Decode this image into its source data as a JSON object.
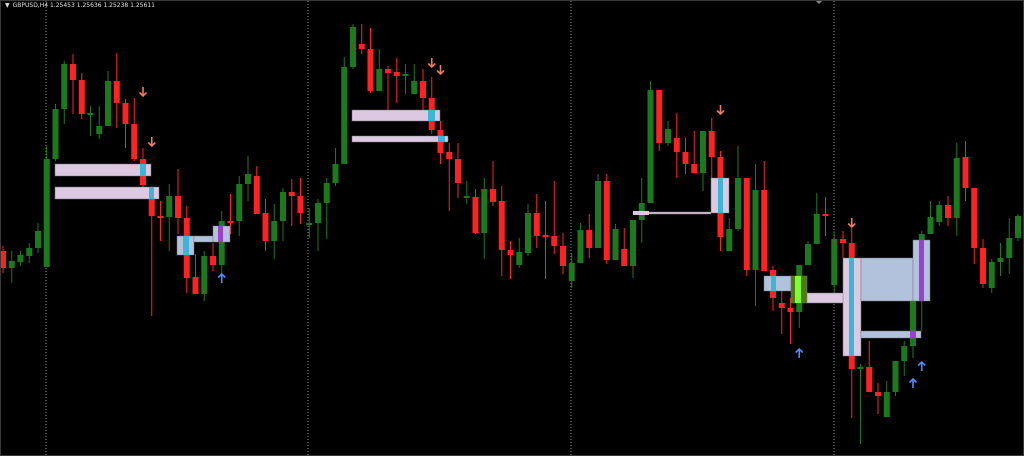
{
  "header": {
    "menu_icon": "triangle-down-icon",
    "symbol": "GBPUSD,H4",
    "ohlc": "1.25453 1.25636 1.25238 1.25611"
  },
  "colors": {
    "background": "#000000",
    "bull": "#1b7a1b",
    "bear": "#ff2222",
    "sell_arrow": "#f27a5e",
    "buy_arrow": "#4a8cff",
    "zone_pink": "#dcc8e0",
    "zone_blue": "#b2c2dc",
    "zone_cyan": "#3bb6d6",
    "zone_purple": "#9b3fd0",
    "zone_lime": "#7aff30",
    "separator": "#9a9a9a"
  },
  "chart_data": {
    "type": "candlestick",
    "title": "GBPUSD,H4",
    "grid": false,
    "ylim": [
      1.2344,
      1.28
    ],
    "period_separators": 4,
    "candles": [
      [
        1.255,
        1.2555,
        1.2528,
        1.2533
      ],
      [
        1.2533,
        1.255,
        1.2518,
        1.254
      ],
      [
        1.2539,
        1.255,
        1.2535,
        1.2546
      ],
      [
        1.2545,
        1.2558,
        1.2538,
        1.2553
      ],
      [
        1.2553,
        1.2578,
        1.2548,
        1.257
      ],
      [
        1.2534,
        1.2655,
        1.2534,
        1.2642
      ],
      [
        1.2642,
        1.2697,
        1.264,
        1.2692
      ],
      [
        1.2692,
        1.274,
        1.2677,
        1.2737
      ],
      [
        1.2737,
        1.2747,
        1.2687,
        1.2721
      ],
      [
        1.2721,
        1.2728,
        1.2682,
        1.2687
      ],
      [
        1.2687,
        1.2695,
        1.2665,
        1.2688
      ],
      [
        1.2667,
        1.2695,
        1.2662,
        1.2675
      ],
      [
        1.2675,
        1.273,
        1.2675,
        1.272
      ],
      [
        1.272,
        1.2748,
        1.2673,
        1.2698
      ],
      [
        1.2698,
        1.2702,
        1.2653,
        1.2677
      ],
      [
        1.2677,
        1.2703,
        1.264,
        1.2642
      ],
      [
        1.2642,
        1.2653,
        1.2614,
        1.2616
      ],
      [
        1.2603,
        1.2613,
        1.2485,
        1.2585
      ],
      [
        1.2585,
        1.26,
        1.256,
        1.2584
      ],
      [
        1.2584,
        1.2617,
        1.255,
        1.2605
      ],
      [
        1.2605,
        1.2632,
        1.2567,
        1.2583
      ],
      [
        1.2583,
        1.2595,
        1.2508,
        1.2523
      ],
      [
        1.2524,
        1.2547,
        1.2507,
        1.2507
      ],
      [
        1.2507,
        1.255,
        1.25,
        1.2545
      ],
      [
        1.2545,
        1.2558,
        1.253,
        1.2536
      ],
      [
        1.2536,
        1.259,
        1.2527,
        1.258
      ],
      [
        1.258,
        1.2607,
        1.2567,
        1.2578
      ],
      [
        1.258,
        1.2625,
        1.2565,
        1.2617
      ],
      [
        1.2617,
        1.2645,
        1.26,
        1.2627
      ],
      [
        1.2625,
        1.2635,
        1.2587,
        1.2587
      ],
      [
        1.2588,
        1.2602,
        1.255,
        1.256
      ],
      [
        1.256,
        1.2597,
        1.2542,
        1.258
      ],
      [
        1.258,
        1.2613,
        1.256,
        1.2609
      ],
      [
        1.2609,
        1.2622,
        1.2575,
        1.2605
      ],
      [
        1.2605,
        1.2623,
        1.2577,
        1.2588
      ],
      [
        1.2576,
        1.2593,
        1.2563,
        1.2578
      ],
      [
        1.2578,
        1.2602,
        1.255,
        1.2598
      ],
      [
        1.2598,
        1.2623,
        1.2562,
        1.2618
      ],
      [
        1.2618,
        1.2653,
        1.2615,
        1.2637
      ],
      [
        1.2637,
        1.2744,
        1.2637,
        1.2734
      ],
      [
        1.2734,
        1.2777,
        1.2732,
        1.2774
      ],
      [
        1.2757,
        1.2777,
        1.2747,
        1.2752
      ],
      [
        1.2752,
        1.2773,
        1.2708,
        1.271
      ],
      [
        1.271,
        1.2752,
        1.271,
        1.2732
      ],
      [
        1.2732,
        1.2735,
        1.269,
        1.2728
      ],
      [
        1.2729,
        1.2743,
        1.2698,
        1.2725
      ],
      [
        1.2726,
        1.2737,
        1.2707,
        1.2727
      ],
      [
        1.2707,
        1.2737,
        1.2707,
        1.272
      ],
      [
        1.272,
        1.2732,
        1.269,
        1.2703
      ],
      [
        1.2703,
        1.2724,
        1.2667,
        1.2671
      ],
      [
        1.2671,
        1.268,
        1.2637,
        1.2648
      ],
      [
        1.2649,
        1.2658,
        1.259,
        1.2642
      ],
      [
        1.2642,
        1.2658,
        1.2603,
        1.2618
      ],
      [
        1.2604,
        1.262,
        1.2597,
        1.2605
      ],
      [
        1.2604,
        1.2612,
        1.2567,
        1.2568
      ],
      [
        1.2568,
        1.2623,
        1.2542,
        1.2612
      ],
      [
        1.2612,
        1.264,
        1.2595,
        1.2599
      ],
      [
        1.26,
        1.2615,
        1.2525,
        1.2551
      ],
      [
        1.2551,
        1.256,
        1.2522,
        1.2546
      ],
      [
        1.2536,
        1.2563,
        1.2533,
        1.2549
      ],
      [
        1.2548,
        1.2597,
        1.2545,
        1.2588
      ],
      [
        1.2588,
        1.2607,
        1.2553,
        1.2565
      ],
      [
        1.2566,
        1.26,
        1.2522,
        1.2564
      ],
      [
        1.2565,
        1.262,
        1.2547,
        1.2555
      ],
      [
        1.2555,
        1.2568,
        1.2527,
        1.2535
      ],
      [
        1.252,
        1.2547,
        1.2513,
        1.2538
      ],
      [
        1.2538,
        1.2578,
        1.2538,
        1.2571
      ],
      [
        1.2571,
        1.2587,
        1.2543,
        1.2553
      ],
      [
        1.2553,
        1.2627,
        1.2553,
        1.262
      ],
      [
        1.262,
        1.2627,
        1.2537,
        1.2541
      ],
      [
        1.2541,
        1.2577,
        1.2541,
        1.2572
      ],
      [
        1.2552,
        1.2573,
        1.2535,
        1.2535
      ],
      [
        1.2535,
        1.2581,
        1.2523,
        1.2581
      ],
      [
        1.2581,
        1.2623,
        1.2558,
        1.2598
      ],
      [
        1.2598,
        1.272,
        1.2598,
        1.2711
      ],
      [
        1.2711,
        1.2711,
        1.265,
        1.2658
      ],
      [
        1.2658,
        1.268,
        1.2655,
        1.2672
      ],
      [
        1.2663,
        1.2688,
        1.2623,
        1.2649
      ],
      [
        1.2649,
        1.2663,
        1.2627,
        1.2637
      ],
      [
        1.2637,
        1.267,
        1.2628,
        1.2628
      ],
      [
        1.2628,
        1.267,
        1.261,
        1.267
      ],
      [
        1.267,
        1.2683,
        1.2623,
        1.2644
      ],
      [
        1.2644,
        1.265,
        1.255,
        1.2564
      ],
      [
        1.255,
        1.2583,
        1.255,
        1.2572
      ],
      [
        1.2572,
        1.2655,
        1.257,
        1.2623
      ],
      [
        1.2623,
        1.2623,
        1.2525,
        1.2531
      ],
      [
        1.2531,
        1.2637,
        1.2495,
        1.2611
      ],
      [
        1.2611,
        1.264,
        1.253,
        1.253
      ],
      [
        1.2531,
        1.2535,
        1.249,
        1.2503
      ],
      [
        1.2498,
        1.251,
        1.2467,
        1.2493
      ],
      [
        1.2493,
        1.2503,
        1.2457,
        1.2489
      ],
      [
        1.2489,
        1.2536,
        1.2473,
        1.2536
      ],
      [
        1.2536,
        1.256,
        1.2536,
        1.2557
      ],
      [
        1.2557,
        1.2608,
        1.2557,
        1.2587
      ],
      [
        1.2587,
        1.2604,
        1.2565,
        1.2585
      ],
      [
        1.2516,
        1.257,
        1.2507,
        1.2562
      ],
      [
        1.2562,
        1.257,
        1.2543,
        1.2558
      ],
      [
        1.2558,
        1.2573,
        1.2383,
        1.2432
      ],
      [
        1.2432,
        1.2437,
        1.2357,
        1.2434
      ],
      [
        1.2434,
        1.246,
        1.2409,
        1.2409
      ],
      [
        1.2409,
        1.2418,
        1.2387,
        1.2405
      ],
      [
        1.2384,
        1.242,
        1.2384,
        1.2409
      ],
      [
        1.2409,
        1.244,
        1.2405,
        1.244
      ],
      [
        1.244,
        1.246,
        1.2425,
        1.2455
      ],
      [
        1.2455,
        1.25,
        1.2443,
        1.25
      ],
      [
        1.25,
        1.257,
        1.247,
        1.2567
      ],
      [
        1.2567,
        1.26,
        1.2567,
        1.2584
      ],
      [
        1.2579,
        1.26,
        1.2575,
        1.2596
      ],
      [
        1.2596,
        1.2605,
        1.2575,
        1.2583
      ],
      [
        1.2583,
        1.2658,
        1.2565,
        1.2643
      ],
      [
        1.2644,
        1.266,
        1.26,
        1.2613
      ],
      [
        1.2613,
        1.2613,
        1.2537,
        1.2553
      ],
      [
        1.2553,
        1.2562,
        1.2513,
        1.2517
      ],
      [
        1.2513,
        1.2542,
        1.2508,
        1.2539
      ],
      [
        1.2539,
        1.2558,
        1.2525,
        1.2543
      ],
      [
        1.2543,
        1.2583,
        1.2527,
        1.2563
      ],
      [
        1.2563,
        1.2587,
        1.256,
        1.2585
      ]
    ],
    "signals": [
      {
        "index": 16,
        "dir": "sell",
        "price": 1.2709
      },
      {
        "index": 17,
        "dir": "sell",
        "price": 1.2659
      },
      {
        "index": 49,
        "dir": "sell",
        "price": 1.2738
      },
      {
        "index": 50,
        "dir": "sell",
        "price": 1.2731
      },
      {
        "index": 82,
        "dir": "sell",
        "price": 1.2691
      },
      {
        "index": 97,
        "dir": "sell",
        "price": 1.2578
      },
      {
        "index": 25,
        "dir": "buy",
        "price": 1.2523
      },
      {
        "index": 91,
        "dir": "buy",
        "price": 1.2448
      },
      {
        "index": 104,
        "dir": "buy",
        "price": 1.2418
      },
      {
        "index": 105,
        "dir": "buy",
        "price": 1.2435
      }
    ]
  }
}
